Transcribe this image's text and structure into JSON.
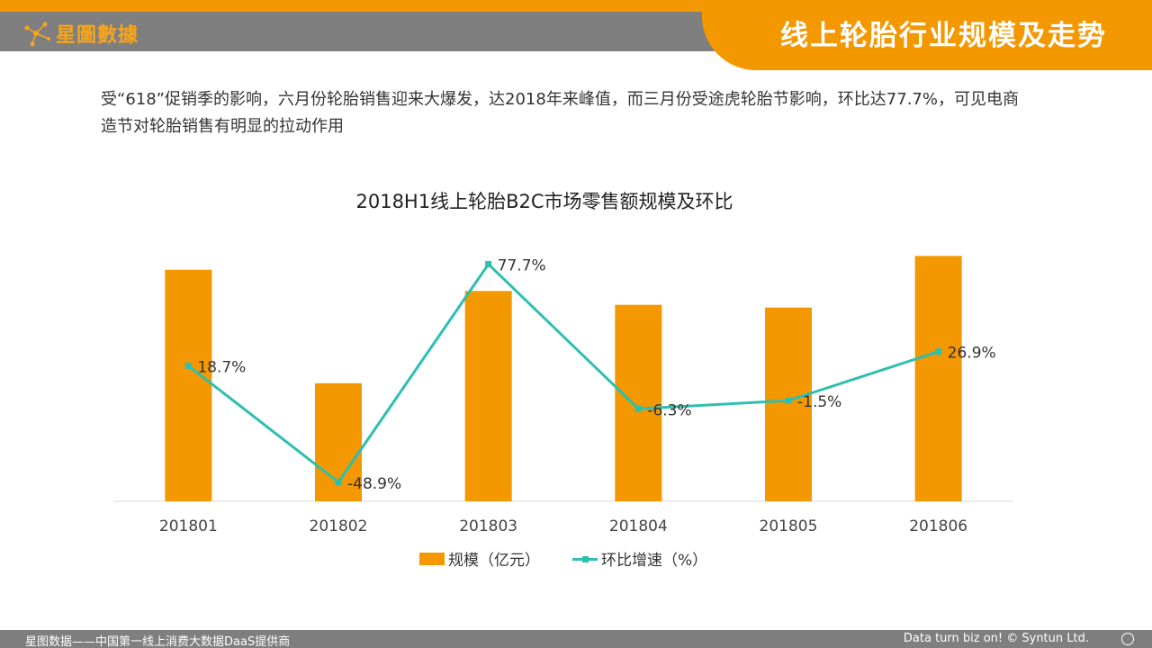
{
  "header": {
    "logo_text": "星圖數據",
    "title": "线上轮胎行业规模及走势"
  },
  "intro_text": "受“618”促销季的影响，六月份轮胎销售迎来大爆发，达2018年来峰值，而三月份受途虎轮胎节影响，环比达77.7%，可见电商造节对轮胎销售有明显的拉动作用",
  "chart_data": {
    "type": "bar",
    "title": "2018H1线上轮胎B2C市场零售额规模及环比",
    "categories": [
      "201801",
      "201802",
      "201803",
      "201804",
      "201805",
      "201806"
    ],
    "series": [
      {
        "name": "规模（亿元）",
        "type": "bar",
        "values": [
          2.51,
          1.28,
          2.28,
          2.13,
          2.1,
          2.66
        ],
        "color": "#f39800"
      },
      {
        "name": "环比增速（%）",
        "type": "line",
        "values": [
          18.7,
          -48.9,
          77.7,
          -6.3,
          -1.5,
          26.9
        ],
        "labels": [
          "18.7%",
          "-48.9%",
          "77.7%",
          "-6.3%",
          "-1.5%",
          "26.9%"
        ],
        "color": "#2dbfb0"
      }
    ],
    "ylim_bar": [
      0,
      2.8
    ],
    "ylim_line": [
      -60,
      90
    ],
    "grid": false,
    "legend_position": "bottom"
  },
  "legend": {
    "bar_label": "规模（亿元）",
    "line_label": "环比增速（%）"
  },
  "footer": {
    "left": "星图数据——中国第一线上消费大数据DaaS提供商",
    "right": "Data turn biz on! © Syntun Ltd."
  }
}
